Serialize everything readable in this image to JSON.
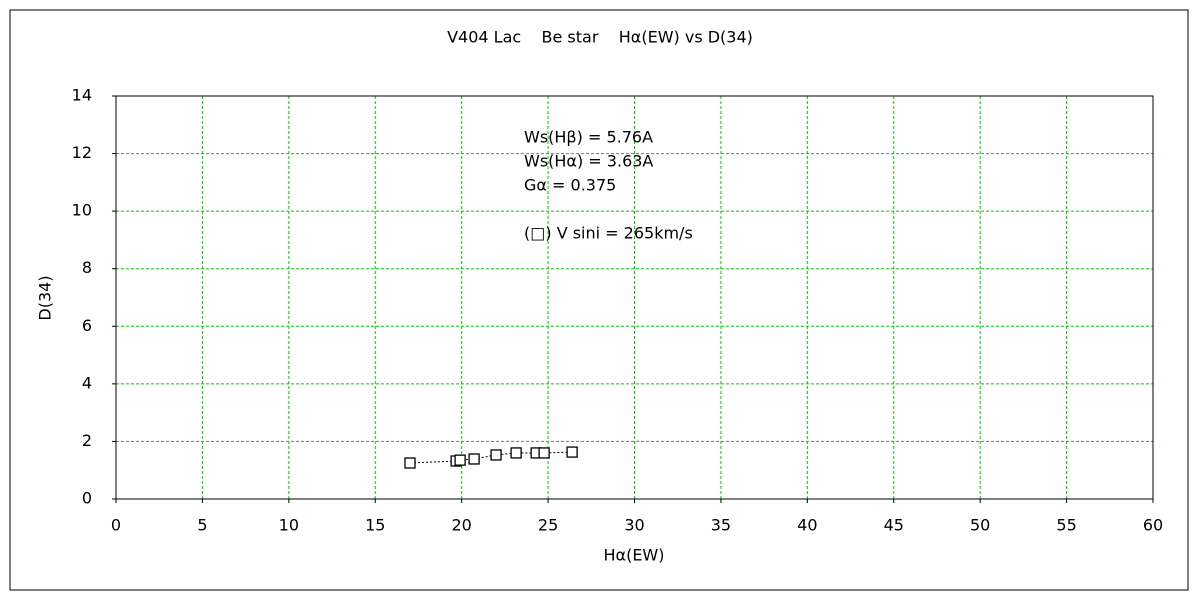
{
  "chart_data": {
    "type": "scatter",
    "title": "V404 Lac    Be star    Hα(EW) vs D(34)",
    "x_label": "Hα(EW)",
    "y_label": "D(34)",
    "annotations": [
      "Ws(Hβ) = 5.76A",
      "Ws(Hα) = 3.63A",
      "Gα = 0.375",
      "(□) V sini = 265km/s"
    ],
    "series": [
      {
        "color": "#000000",
        "x": [
          17.01,
          19.68,
          19.91,
          20.72,
          21.99,
          23.15,
          24.31,
          24.77,
          26.39
        ],
        "values": [
          1.25,
          1.32,
          1.35,
          1.39,
          1.53,
          1.6,
          1.6,
          1.6,
          1.63
        ]
      }
    ],
    "xlim": [
      0,
      60
    ],
    "xticks": [
      0,
      5,
      10,
      15,
      20,
      25,
      30,
      35,
      40,
      45,
      50,
      55,
      60
    ],
    "ylim": [
      0,
      14
    ],
    "yticks": [
      0,
      2,
      4,
      6,
      8,
      10,
      12,
      14
    ],
    "grid": true,
    "grid_color": "#00cc00"
  }
}
